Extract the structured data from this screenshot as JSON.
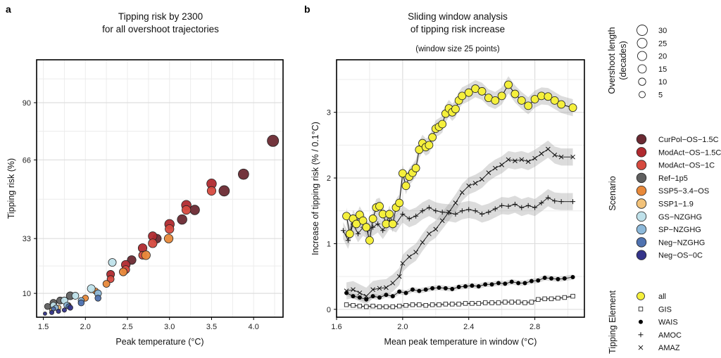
{
  "panel_labels": {
    "a": "a",
    "b": "b"
  },
  "chart_data": [
    {
      "type": "scatter",
      "title": "Tipping risk by 2300",
      "subtitle": "for all overshoot trajectories",
      "xlabel": "Peak temperature (°C)",
      "ylabel": "Tipping risk (%)",
      "xlim": [
        1.42,
        4.35
      ],
      "ylim": [
        0,
        108
      ],
      "xticks": [
        1.5,
        2.0,
        2.5,
        3.0,
        3.5,
        4.0
      ],
      "xtick_labels": [
        "1.5",
        "2.0",
        "2.5",
        "3.0",
        "3.5",
        "4.0"
      ],
      "yticks": [
        10,
        33,
        66,
        90
      ],
      "ytick_labels": [
        "10",
        "33",
        "66",
        "90"
      ],
      "grid": true,
      "series": [
        {
          "name": "CurPol-OS-1.5C",
          "color": "#6b2a33",
          "points": [
            [
              4.23,
              74,
              13
            ],
            [
              3.88,
              60,
              12
            ],
            [
              3.65,
              53,
              12
            ],
            [
              3.3,
              45,
              11
            ],
            [
              3.15,
              41,
              11
            ],
            [
              2.85,
              33,
              10
            ],
            [
              2.55,
              24,
              10
            ]
          ]
        },
        {
          "name": "ModAct-OS-1.5C",
          "color": "#b02a2f",
          "points": [
            [
              3.5,
              56,
              11
            ],
            [
              3.2,
              47,
              11
            ],
            [
              3.0,
              39,
              11
            ],
            [
              2.8,
              34,
              10
            ],
            [
              2.68,
              29,
              10
            ],
            [
              2.48,
              22,
              10
            ],
            [
              2.3,
              18,
              9
            ]
          ]
        },
        {
          "name": "ModAct-OS-1C",
          "color": "#d64a3f",
          "points": [
            [
              3.5,
              53,
              10
            ],
            [
              3.2,
              45,
              10
            ],
            [
              3.0,
              37,
              10
            ],
            [
              2.8,
              31,
              10
            ],
            [
              2.68,
              26,
              9
            ],
            [
              2.48,
              20,
              9
            ],
            [
              2.3,
              16,
              8
            ]
          ]
        },
        {
          "name": "Ref-1p5",
          "color": "#5f5f5f",
          "points": [
            [
              1.82,
              9,
              9
            ],
            [
              1.7,
              7,
              8
            ],
            [
              1.62,
              6,
              8
            ],
            [
              1.55,
              4.5,
              7
            ]
          ]
        },
        {
          "name": "SSP5-3.4-OS",
          "color": "#e8893a",
          "points": [
            [
              2.99,
              33,
              10
            ],
            [
              2.72,
              26,
              10
            ],
            [
              2.45,
              19,
              9
            ],
            [
              2.25,
              14,
              8
            ],
            [
              2.12,
              11,
              7
            ],
            [
              2.0,
              8,
              7
            ],
            [
              1.8,
              5,
              6
            ]
          ]
        },
        {
          "name": "SSP1-1.9",
          "color": "#f2c279",
          "points": [
            [
              1.68,
              4,
              6
            ],
            [
              1.6,
              3,
              5
            ]
          ]
        },
        {
          "name": "GS-NZGHG",
          "color": "#bfe1ea",
          "points": [
            [
              2.32,
              23,
              9
            ],
            [
              2.07,
              12,
              9
            ],
            [
              1.88,
              9,
              8
            ],
            [
              1.75,
              7,
              8
            ],
            [
              1.62,
              5,
              7
            ]
          ]
        },
        {
          "name": "SP-NZGHG",
          "color": "#8db9da",
          "points": [
            [
              2.15,
              10,
              8
            ],
            [
              1.95,
              7,
              7
            ],
            [
              1.78,
              5,
              7
            ],
            [
              1.65,
              4,
              6
            ]
          ]
        },
        {
          "name": "Neg-NZGHG",
          "color": "#4f72b0",
          "points": [
            [
              2.15,
              8,
              7
            ],
            [
              1.95,
              6,
              7
            ],
            [
              1.8,
              4.5,
              6
            ],
            [
              1.62,
              3.5,
              5
            ]
          ]
        },
        {
          "name": "Neg-OS-0C",
          "color": "#34348a",
          "points": [
            [
              1.82,
              4,
              6
            ],
            [
              1.75,
              3,
              5
            ],
            [
              1.68,
              2.5,
              5
            ],
            [
              1.6,
              2,
              5
            ],
            [
              1.52,
              1.5,
              4
            ]
          ]
        }
      ]
    },
    {
      "type": "line",
      "title": "Sliding window analysis",
      "title2": "of tipping risk increase",
      "subtitle": "(window size 25 points)",
      "xlabel": "Mean peak temperature in window (°C)",
      "ylabel": "Increase of tipping risk (% / 0.1°C)",
      "xlim": [
        1.6,
        3.1
      ],
      "ylim": [
        -0.12,
        3.8
      ],
      "xticks": [
        1.6,
        2.0,
        2.4,
        2.8
      ],
      "xtick_labels": [
        "1.6",
        "2.0",
        "2.4",
        "2.8"
      ],
      "yticks": [
        0,
        1,
        2,
        3
      ],
      "ytick_labels": [
        "0",
        "1",
        "2",
        "3"
      ],
      "grid": true,
      "series": [
        {
          "name": "all",
          "marker": "yellow-circle",
          "color": "#f5f03c",
          "x": [
            1.66,
            1.68,
            1.7,
            1.72,
            1.74,
            1.76,
            1.78,
            1.8,
            1.82,
            1.84,
            1.86,
            1.88,
            1.9,
            1.92,
            1.94,
            1.96,
            1.98,
            2.0,
            2.02,
            2.04,
            2.06,
            2.08,
            2.1,
            2.12,
            2.14,
            2.16,
            2.18,
            2.2,
            2.22,
            2.24,
            2.26,
            2.28,
            2.3,
            2.32,
            2.34,
            2.36,
            2.4,
            2.44,
            2.48,
            2.52,
            2.56,
            2.6,
            2.64,
            2.68,
            2.72,
            2.76,
            2.8,
            2.84,
            2.88,
            2.92,
            2.96,
            3.03
          ],
          "y": [
            1.42,
            1.15,
            1.38,
            1.3,
            1.44,
            1.35,
            1.25,
            1.05,
            1.38,
            1.55,
            1.57,
            1.45,
            1.3,
            1.45,
            1.3,
            1.55,
            1.62,
            2.07,
            1.88,
            2.02,
            2.08,
            2.15,
            2.43,
            2.53,
            2.47,
            2.5,
            2.62,
            2.75,
            2.78,
            2.82,
            2.98,
            3.06,
            3.0,
            3.05,
            3.18,
            3.25,
            3.3,
            3.36,
            3.32,
            3.22,
            3.18,
            3.25,
            3.42,
            3.28,
            3.18,
            3.1,
            3.2,
            3.25,
            3.24,
            3.18,
            3.12,
            3.07
          ],
          "band": 0.13
        },
        {
          "name": "GIS",
          "marker": "open-square",
          "color": "#000000",
          "x": [
            1.66,
            1.7,
            1.74,
            1.78,
            1.82,
            1.86,
            1.9,
            1.94,
            1.98,
            2.02,
            2.06,
            2.1,
            2.14,
            2.18,
            2.22,
            2.26,
            2.3,
            2.34,
            2.38,
            2.42,
            2.46,
            2.5,
            2.54,
            2.58,
            2.62,
            2.66,
            2.7,
            2.74,
            2.78,
            2.82,
            2.86,
            2.9,
            2.94,
            2.98,
            3.03
          ],
          "y": [
            0.07,
            0.06,
            0.05,
            0.04,
            0.05,
            0.04,
            0.04,
            0.04,
            0.05,
            0.06,
            0.07,
            0.07,
            0.06,
            0.07,
            0.07,
            0.08,
            0.08,
            0.08,
            0.09,
            0.09,
            0.09,
            0.1,
            0.1,
            0.1,
            0.11,
            0.11,
            0.11,
            0.1,
            0.11,
            0.15,
            0.16,
            0.16,
            0.17,
            0.18,
            0.2
          ],
          "band": 0.02
        },
        {
          "name": "WAIS",
          "marker": "filled-circle",
          "color": "#000000",
          "x": [
            1.66,
            1.7,
            1.74,
            1.78,
            1.82,
            1.86,
            1.9,
            1.94,
            1.98,
            2.02,
            2.06,
            2.1,
            2.14,
            2.18,
            2.22,
            2.26,
            2.3,
            2.34,
            2.38,
            2.42,
            2.46,
            2.5,
            2.54,
            2.58,
            2.62,
            2.66,
            2.7,
            2.74,
            2.78,
            2.82,
            2.86,
            2.9,
            2.94,
            2.98,
            3.03
          ],
          "y": [
            0.25,
            0.2,
            0.18,
            0.15,
            0.2,
            0.18,
            0.22,
            0.2,
            0.27,
            0.25,
            0.3,
            0.28,
            0.3,
            0.32,
            0.33,
            0.32,
            0.31,
            0.34,
            0.35,
            0.36,
            0.35,
            0.38,
            0.38,
            0.4,
            0.39,
            0.42,
            0.4,
            0.4,
            0.43,
            0.44,
            0.48,
            0.47,
            0.46,
            0.47,
            0.49
          ],
          "band": 0.04
        },
        {
          "name": "AMOC",
          "marker": "plus",
          "color": "#000000",
          "x": [
            1.64,
            1.67,
            1.7,
            1.73,
            1.76,
            1.79,
            1.82,
            1.85,
            1.88,
            1.92,
            1.96,
            2.0,
            2.04,
            2.08,
            2.12,
            2.16,
            2.2,
            2.24,
            2.28,
            2.32,
            2.36,
            2.4,
            2.44,
            2.48,
            2.52,
            2.56,
            2.6,
            2.64,
            2.68,
            2.72,
            2.76,
            2.8,
            2.84,
            2.88,
            2.92,
            2.96,
            3.03
          ],
          "y": [
            1.2,
            1.05,
            1.3,
            1.15,
            1.25,
            1.2,
            1.25,
            1.3,
            1.2,
            1.35,
            1.3,
            1.45,
            1.38,
            1.42,
            1.5,
            1.55,
            1.5,
            1.48,
            1.47,
            1.45,
            1.5,
            1.52,
            1.5,
            1.45,
            1.48,
            1.53,
            1.58,
            1.57,
            1.6,
            1.55,
            1.58,
            1.55,
            1.62,
            1.7,
            1.65,
            1.64,
            1.64
          ],
          "band": 0.13
        },
        {
          "name": "AMAZ",
          "marker": "cross",
          "color": "#000000",
          "x": [
            1.66,
            1.7,
            1.74,
            1.78,
            1.82,
            1.86,
            1.9,
            1.94,
            1.98,
            2.0,
            2.04,
            2.08,
            2.12,
            2.16,
            2.2,
            2.24,
            2.28,
            2.32,
            2.36,
            2.4,
            2.44,
            2.48,
            2.52,
            2.56,
            2.6,
            2.64,
            2.68,
            2.72,
            2.76,
            2.8,
            2.84,
            2.88,
            2.92,
            2.96,
            3.03
          ],
          "y": [
            0.28,
            0.3,
            0.25,
            0.2,
            0.3,
            0.32,
            0.33,
            0.4,
            0.5,
            0.7,
            0.8,
            0.87,
            1.02,
            1.15,
            1.22,
            1.35,
            1.48,
            1.62,
            1.78,
            1.88,
            1.92,
            1.98,
            2.08,
            2.15,
            2.2,
            2.28,
            2.26,
            2.28,
            2.25,
            2.3,
            2.37,
            2.44,
            2.35,
            2.32,
            2.32
          ],
          "band": 0.13
        }
      ]
    }
  ],
  "legends": {
    "size": {
      "title": "Overshoot length",
      "title2": "(decades)",
      "items": [
        {
          "label": "30",
          "r": 7.5
        },
        {
          "label": "25",
          "r": 7
        },
        {
          "label": "20",
          "r": 6.5
        },
        {
          "label": "15",
          "r": 6
        },
        {
          "label": "10",
          "r": 5.2
        },
        {
          "label": "5",
          "r": 4.5
        }
      ]
    },
    "scenario": {
      "title": "Scenario",
      "items": [
        {
          "label": "CurPol−OS−1.5C",
          "color": "#6b2a33"
        },
        {
          "label": "ModAct−OS−1.5C",
          "color": "#b02a2f"
        },
        {
          "label": "ModAct−OS−1C",
          "color": "#d64a3f"
        },
        {
          "label": "Ref−1p5",
          "color": "#5f5f5f"
        },
        {
          "label": "SSP5−3.4−OS",
          "color": "#e8893a"
        },
        {
          "label": "SSP1−1.9",
          "color": "#f2c279"
        },
        {
          "label": "GS−NZGHG",
          "color": "#bfe1ea"
        },
        {
          "label": "SP−NZGHG",
          "color": "#8db9da"
        },
        {
          "label": "Neg−NZGHG",
          "color": "#4f72b0"
        },
        {
          "label": "Neg−OS−0C",
          "color": "#34348a"
        }
      ]
    },
    "element": {
      "title": "Tipping Element",
      "items": [
        {
          "label": "all",
          "marker": "yellow-circle"
        },
        {
          "label": "GIS",
          "marker": "open-square"
        },
        {
          "label": "WAIS",
          "marker": "filled-circle"
        },
        {
          "label": "AMOC",
          "marker": "plus"
        },
        {
          "label": "AMAZ",
          "marker": "cross"
        }
      ]
    }
  }
}
